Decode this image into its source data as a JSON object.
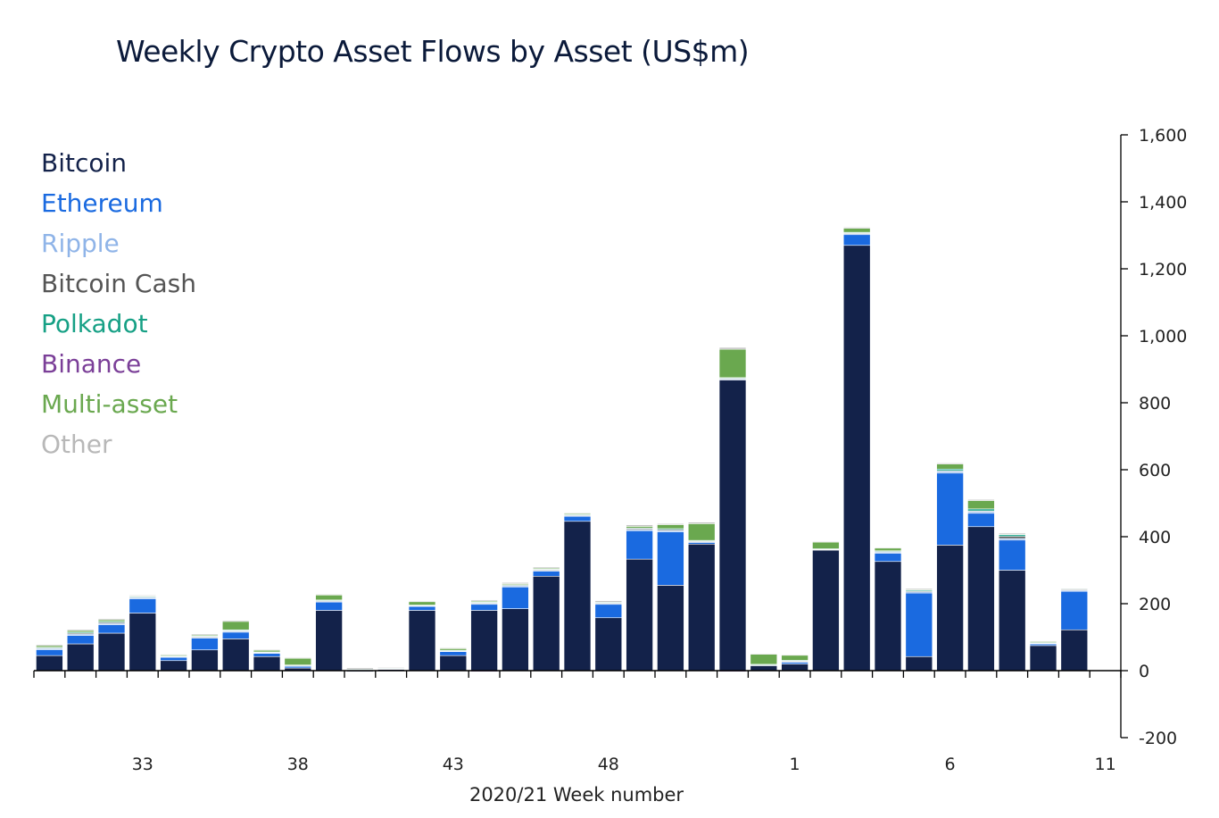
{
  "chart_data": {
    "type": "bar",
    "stacked": true,
    "title": "Weekly Crypto Asset Flows by Asset (US$m)",
    "xlabel": "2020/21 Week number",
    "ylabel": "",
    "ylim": [
      -200,
      1600
    ],
    "yticks": [
      -200,
      0,
      200,
      400,
      600,
      800,
      1000,
      1200,
      1400,
      1600
    ],
    "ytick_labels": [
      "-200",
      "0",
      "200",
      "400",
      "600",
      "800",
      "1,000",
      "1,200",
      "1,400",
      "1,600"
    ],
    "y_axis_side": "right",
    "grid": false,
    "legend_position": "top-left",
    "categories": [
      "30",
      "31",
      "32",
      "33",
      "34",
      "35",
      "36",
      "37",
      "38",
      "39",
      "40",
      "41",
      "42",
      "43",
      "44",
      "45",
      "46",
      "47",
      "48",
      "49",
      "50",
      "51",
      "52",
      "53",
      "1",
      "2",
      "3",
      "4",
      "5",
      "6",
      "7",
      "8",
      "9",
      "10",
      "11"
    ],
    "x_tick_labels": [
      "33",
      "38",
      "43",
      "48",
      "1",
      "6",
      "11"
    ],
    "series": [
      {
        "name": "Bitcoin",
        "color": "#13224a",
        "values": [
          45,
          80,
          112,
          172,
          30,
          62,
          95,
          42,
          8,
          180,
          -3,
          4,
          180,
          45,
          180,
          185,
          282,
          446,
          158,
          333,
          255,
          378,
          868,
          15,
          20,
          360,
          1270,
          326,
          42,
          375,
          430,
          300,
          75,
          122,
          -2
        ]
      },
      {
        "name": "Ethereum",
        "color": "#1a6ae0",
        "values": [
          18,
          25,
          25,
          43,
          10,
          35,
          20,
          10,
          5,
          25,
          0,
          0,
          12,
          12,
          18,
          65,
          15,
          15,
          40,
          85,
          160,
          5,
          0,
          0,
          5,
          0,
          32,
          25,
          190,
          215,
          40,
          90,
          5,
          115,
          0
        ]
      },
      {
        "name": "Ripple",
        "color": "#8fb4e8",
        "values": [
          3,
          4,
          4,
          3,
          2,
          3,
          3,
          2,
          2,
          2,
          2,
          2,
          2,
          2,
          3,
          3,
          3,
          2,
          3,
          3,
          3,
          2,
          3,
          2,
          3,
          2,
          3,
          3,
          4,
          5,
          5,
          5,
          2,
          3,
          0
        ]
      },
      {
        "name": "Bitcoin Cash",
        "color": "#555555",
        "values": [
          2,
          3,
          3,
          2,
          1,
          2,
          2,
          1,
          1,
          2,
          1,
          1,
          1,
          1,
          2,
          2,
          2,
          2,
          2,
          3,
          3,
          2,
          2,
          1,
          1,
          1,
          2,
          2,
          2,
          2,
          2,
          6,
          1,
          2,
          0
        ]
      },
      {
        "name": "Polkadot",
        "color": "#16a085",
        "values": [
          2,
          3,
          3,
          2,
          1,
          2,
          2,
          1,
          1,
          2,
          1,
          1,
          1,
          1,
          2,
          2,
          2,
          2,
          2,
          2,
          3,
          2,
          2,
          1,
          2,
          1,
          2,
          2,
          3,
          5,
          6,
          5,
          1,
          2,
          0
        ]
      },
      {
        "name": "Binance",
        "color": "#7b3f98",
        "values": [
          0,
          0,
          0,
          0,
          0,
          0,
          0,
          0,
          0,
          0,
          0,
          0,
          0,
          0,
          -3,
          0,
          0,
          0,
          0,
          0,
          -2,
          -2,
          -3,
          0,
          -2,
          0,
          0,
          0,
          0,
          0,
          0,
          0,
          0,
          0,
          0
        ]
      },
      {
        "name": "Multi-asset",
        "color": "#6aa84f",
        "values": [
          5,
          5,
          5,
          2,
          3,
          3,
          25,
          5,
          20,
          15,
          0,
          0,
          10,
          5,
          3,
          3,
          3,
          3,
          0,
          5,
          12,
          50,
          85,
          30,
          15,
          20,
          12,
          8,
          2,
          15,
          25,
          2,
          3,
          0,
          0
        ]
      },
      {
        "name": "Other",
        "color": "#b8b8b8",
        "values": [
          3,
          3,
          3,
          2,
          2,
          3,
          3,
          2,
          2,
          2,
          4,
          2,
          2,
          2,
          3,
          3,
          3,
          2,
          4,
          4,
          3,
          4,
          5,
          2,
          2,
          2,
          3,
          2,
          3,
          3,
          3,
          3,
          2,
          2,
          0
        ]
      }
    ]
  }
}
